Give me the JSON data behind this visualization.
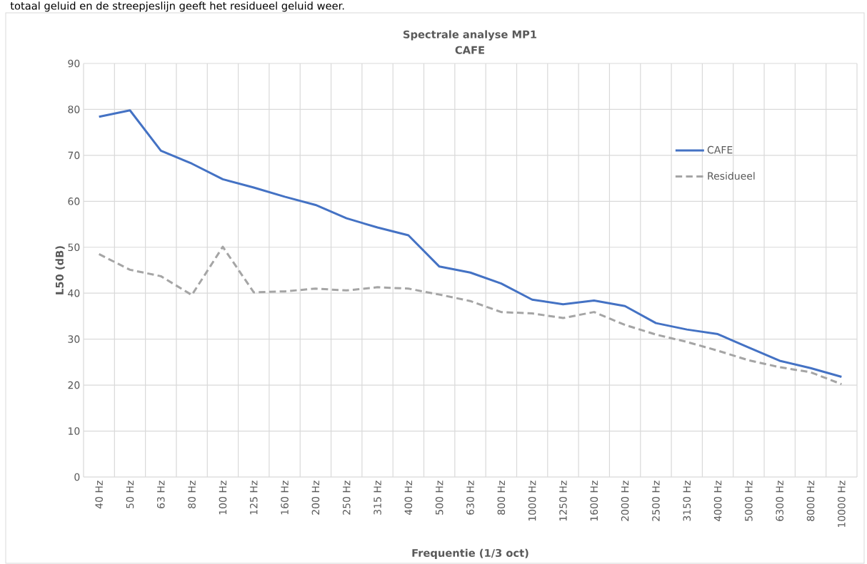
{
  "chart_data": {
    "type": "line",
    "title": "Spectrale analyse MP1",
    "subtitle": "CAFE",
    "xlabel": "Frequentie (1/3 oct)",
    "ylabel": "L50 (dB)",
    "annotations": [
      "totaal geluid en de streepjeslijn geeft het residueel geluid weer."
    ],
    "categories": [
      "40 Hz",
      "50 Hz",
      "63 Hz",
      "80 Hz",
      "100 Hz",
      "125 Hz",
      "160 Hz",
      "200 Hz",
      "250 Hz",
      "315 Hz",
      "400 Hz",
      "500 Hz",
      "630 Hz",
      "800 Hz",
      "1000 Hz",
      "1250 Hz",
      "1600 Hz",
      "2000 Hz",
      "2500 Hz",
      "3150 Hz",
      "4000 Hz",
      "5000 Hz",
      "6300 Hz",
      "8000 Hz",
      "10000 Hz"
    ],
    "series": [
      {
        "name": "CAFE",
        "color": "#4472c4",
        "line_style": "solid",
        "values": [
          78.4,
          79.8,
          71,
          68.2,
          64.8,
          63,
          61,
          59.2,
          56.3,
          54.3,
          52.6,
          45.8,
          44.5,
          42.1,
          38.6,
          37.6,
          38.4,
          37.2,
          33.5,
          32.1,
          31.1,
          28.2,
          25.3,
          23.7,
          21.8
        ]
      },
      {
        "name": "Residueel",
        "color": "#a5a5a5",
        "line_style": "dashed",
        "values": [
          48.5,
          45.1,
          43.7,
          39.6,
          50.1,
          40.2,
          40.4,
          41.0,
          40.6,
          41.3,
          41.0,
          39.7,
          38.3,
          35.9,
          35.6,
          34.6,
          35.9,
          33.1,
          31.0,
          29.4,
          27.5,
          25.4,
          23.9,
          22.8,
          20.2
        ]
      }
    ],
    "ylim": [
      0,
      90
    ],
    "yticks": [
      0,
      10,
      20,
      30,
      40,
      50,
      60,
      70,
      80,
      90
    ],
    "grid": true,
    "legend": "top right"
  }
}
